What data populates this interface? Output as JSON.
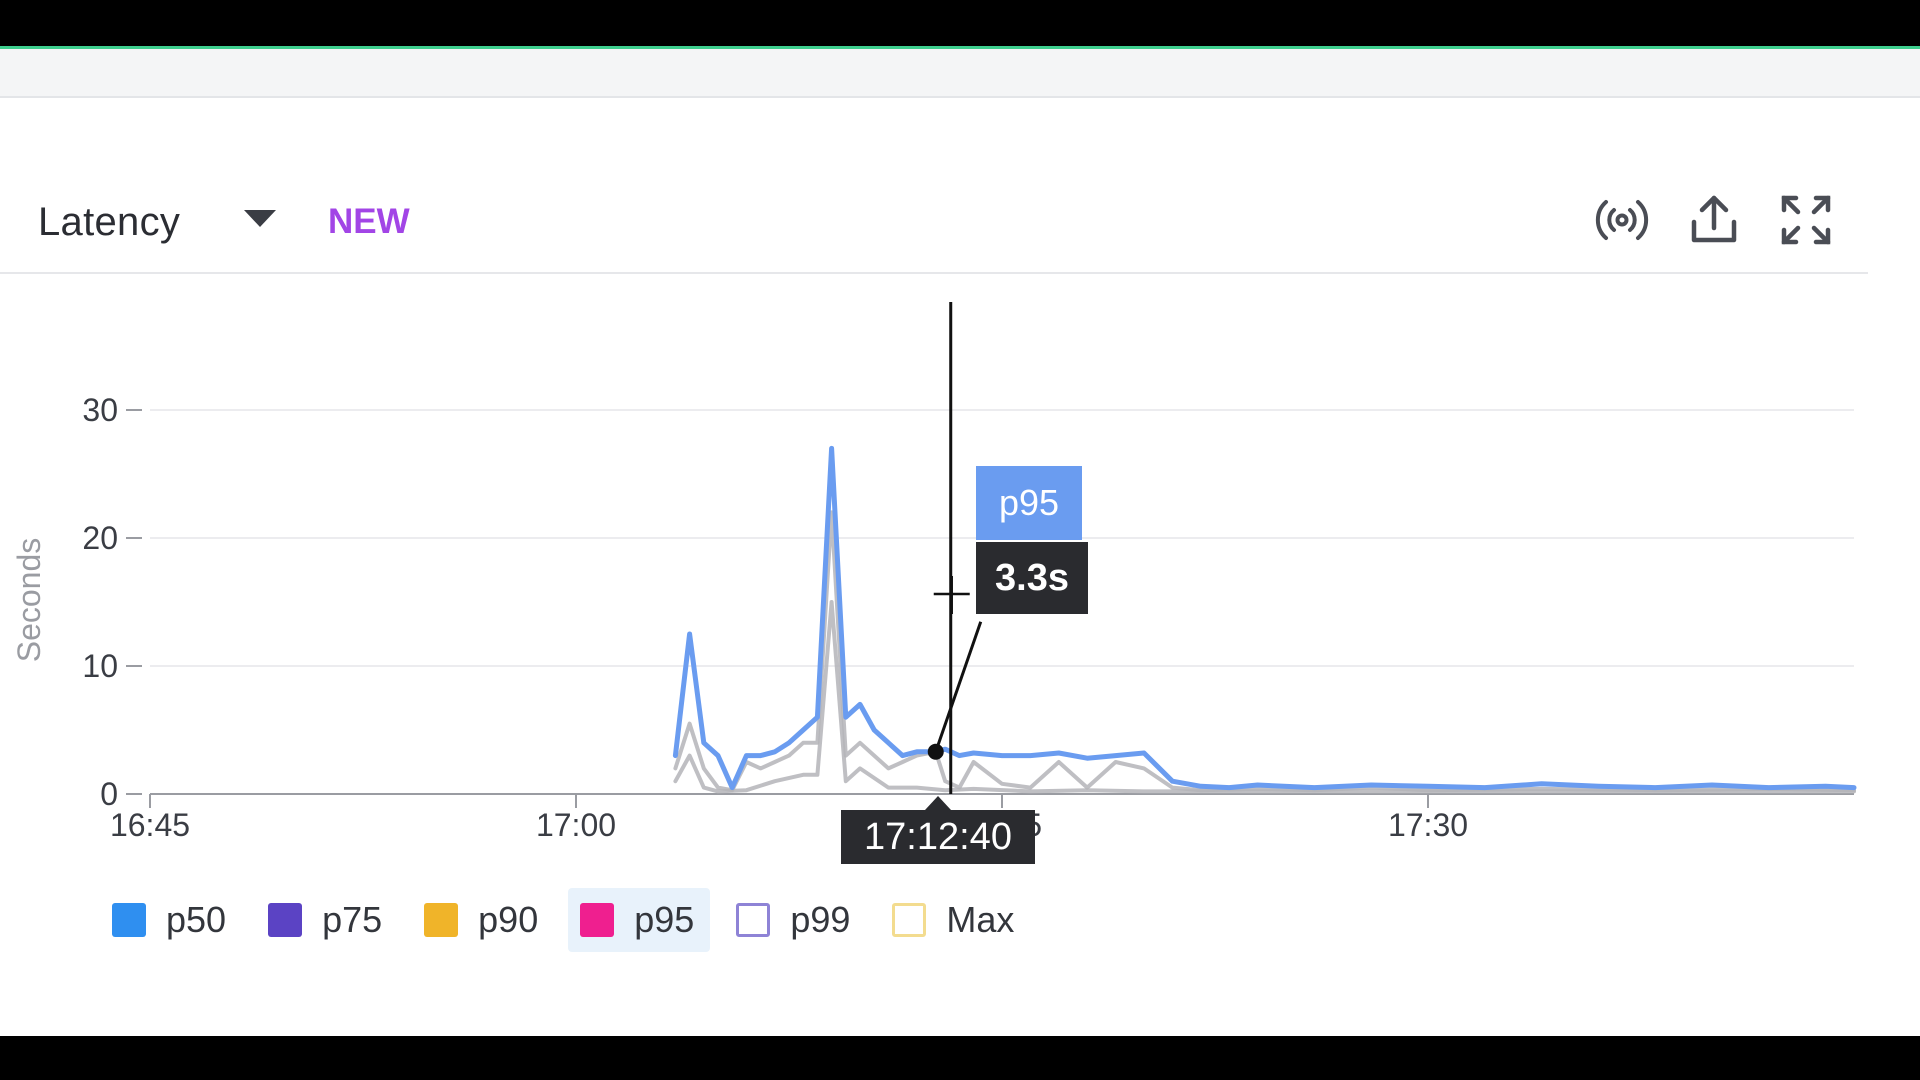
{
  "widget": {
    "title": "Latency",
    "badge": "NEW",
    "icons": [
      "live-signal-icon",
      "share-export-icon",
      "fullscreen-expand-icon"
    ]
  },
  "colors": {
    "p50": "#2f8ff0",
    "p75": "#5b43c4",
    "p90": "#f0b429",
    "p95": "#ef1f8f",
    "p99": "#8e83d6",
    "max": "#f3dc8f",
    "line_highlight": "#6a9cf0",
    "line_muted": "#b4b4b8",
    "badge": "#a245e6"
  },
  "tooltip": {
    "series": "p95",
    "value": "3.3s",
    "time": "17:12:40"
  },
  "legend": [
    {
      "key": "p50",
      "label": "p50",
      "filled": true,
      "active": false
    },
    {
      "key": "p75",
      "label": "p75",
      "filled": true,
      "active": false
    },
    {
      "key": "p90",
      "label": "p90",
      "filled": true,
      "active": false
    },
    {
      "key": "p95",
      "label": "p95",
      "filled": true,
      "active": true
    },
    {
      "key": "p99",
      "label": "p99",
      "filled": false,
      "active": false
    },
    {
      "key": "max",
      "label": "Max",
      "filled": false,
      "active": false
    }
  ],
  "chart_data": {
    "type": "line",
    "ylabel": "Seconds",
    "xlabel": "",
    "ylim": [
      0,
      35
    ],
    "yticks": [
      0,
      10,
      20,
      30
    ],
    "xlim": [
      "16:45",
      "17:45"
    ],
    "xticks": [
      "16:45",
      "17:00",
      "17:15",
      "17:30"
    ],
    "grid": true,
    "cursor_time": "17:12:40",
    "series": [
      {
        "name": "p95",
        "highlighted": true,
        "x": [
          "17:03:30",
          "17:04:00",
          "17:04:30",
          "17:05:00",
          "17:05:30",
          "17:06:00",
          "17:06:30",
          "17:07:00",
          "17:07:30",
          "17:08:00",
          "17:08:30",
          "17:09:00",
          "17:09:30",
          "17:10:00",
          "17:10:30",
          "17:11:00",
          "17:11:30",
          "17:12:00",
          "17:12:40",
          "17:13:00",
          "17:13:30",
          "17:14:00",
          "17:15:00",
          "17:16:00",
          "17:17:00",
          "17:18:00",
          "17:19:00",
          "17:20:00",
          "17:21:00",
          "17:22:00",
          "17:23:00",
          "17:24:00",
          "17:26:00",
          "17:28:00",
          "17:30:00",
          "17:32:00",
          "17:34:00",
          "17:36:00",
          "17:38:00",
          "17:40:00",
          "17:42:00",
          "17:44:00",
          "17:45:00"
        ],
        "y": [
          3,
          12.5,
          4,
          3,
          0.5,
          3,
          3,
          3.3,
          4,
          5,
          6,
          27,
          6,
          7,
          5,
          4,
          3,
          3.3,
          3.3,
          3.5,
          3,
          3.2,
          3,
          3,
          3.2,
          2.8,
          3,
          3.2,
          1,
          0.6,
          0.5,
          0.7,
          0.5,
          0.7,
          0.6,
          0.5,
          0.8,
          0.6,
          0.5,
          0.7,
          0.5,
          0.6,
          0.5
        ]
      },
      {
        "name": "p90",
        "highlighted": false,
        "x": [
          "17:03:30",
          "17:04:00",
          "17:04:30",
          "17:05:00",
          "17:05:30",
          "17:06:00",
          "17:06:30",
          "17:07:00",
          "17:07:30",
          "17:08:00",
          "17:08:30",
          "17:09:00",
          "17:09:30",
          "17:10:00",
          "17:10:30",
          "17:11:00",
          "17:11:30",
          "17:12:00",
          "17:12:40",
          "17:13:00",
          "17:13:30",
          "17:14:00",
          "17:15:00",
          "17:16:00",
          "17:17:00",
          "17:18:00",
          "17:19:00",
          "17:20:00",
          "17:21:00",
          "17:22:00",
          "17:24:00",
          "17:26:00",
          "17:28:00",
          "17:30:00",
          "17:34:00",
          "17:38:00",
          "17:42:00",
          "17:45:00"
        ],
        "y": [
          2,
          5.5,
          2,
          0.5,
          0.3,
          2.5,
          2,
          2.5,
          3,
          4,
          4,
          22,
          3,
          4,
          3,
          2,
          2.5,
          3,
          3.3,
          1,
          0.5,
          2.5,
          0.8,
          0.5,
          2.5,
          0.5,
          2.5,
          2,
          0.5,
          0.3,
          0.4,
          0.3,
          0.5,
          0.3,
          0.4,
          0.3,
          0.4,
          0.3
        ]
      },
      {
        "name": "p75",
        "highlighted": false,
        "x": [
          "17:03:30",
          "17:04:00",
          "17:04:30",
          "17:05:00",
          "17:06:00",
          "17:07:00",
          "17:08:00",
          "17:08:30",
          "17:09:00",
          "17:09:30",
          "17:10:00",
          "17:11:00",
          "17:12:00",
          "17:13:00",
          "17:14:00",
          "17:16:00",
          "17:18:00",
          "17:20:00",
          "17:24:00",
          "17:30:00",
          "17:36:00",
          "17:45:00"
        ],
        "y": [
          1,
          3,
          0.5,
          0.2,
          0.3,
          1,
          1.5,
          1.5,
          15,
          1,
          2,
          0.5,
          0.5,
          0.3,
          0.4,
          0.2,
          0.3,
          0.2,
          0.2,
          0.2,
          0.2,
          0.2
        ]
      }
    ]
  }
}
